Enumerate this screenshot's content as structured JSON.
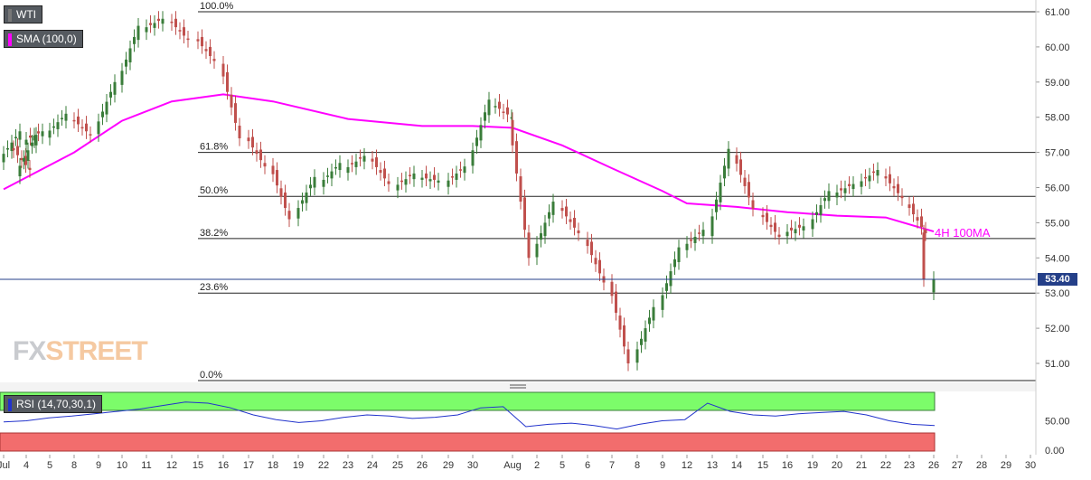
{
  "instrument_label": "WTI",
  "sma_label": "SMA (100,0)",
  "rsi_label": "RSI (14,70,30,1)",
  "ma_annotation": "4H 100MA",
  "current_price": "53.40",
  "logo": {
    "part1": "FX",
    "part2": "STREET"
  },
  "colors": {
    "bull": "#3a7d3a",
    "bear": "#c0504d",
    "sma": "#ff00ff",
    "rsi_line": "#2233cc",
    "overbought_zone": "#7cfc6a",
    "oversold_zone": "#f26d6d",
    "price_line": "#243f88"
  },
  "chart_data": {
    "type": "candlestick",
    "ylim": [
      50.5,
      61.1
    ],
    "price_ticks": [
      "61.00",
      "60.00",
      "59.00",
      "58.00",
      "57.00",
      "56.00",
      "55.00",
      "54.00",
      "53.00",
      "52.00",
      "51.00"
    ],
    "x_ticks": [
      "Jul",
      "4",
      "5",
      "8",
      "9",
      "10",
      "11",
      "12",
      "15",
      "16",
      "17",
      "18",
      "19",
      "22",
      "23",
      "24",
      "25",
      "26",
      "29",
      "30",
      "Aug",
      "2",
      "5",
      "6",
      "7",
      "8",
      "9",
      "12",
      "13",
      "14",
      "15",
      "16",
      "19",
      "20",
      "21",
      "22",
      "23",
      "26",
      "27",
      "28",
      "29",
      "30"
    ],
    "fibonacci": [
      {
        "label": "100.0%",
        "level": 61.0
      },
      {
        "label": "61.8%",
        "level": 57.0
      },
      {
        "label": "50.0%",
        "level": 55.75
      },
      {
        "label": "38.2%",
        "level": 54.55
      },
      {
        "label": "23.6%",
        "level": 53.0
      },
      {
        "label": "0.0%",
        "level": 50.5
      }
    ],
    "sma_100": [
      {
        "date": "Jul 1",
        "value": 55.95
      },
      {
        "date": "Jul 8",
        "value": 57.0
      },
      {
        "date": "Jul 10",
        "value": 57.9
      },
      {
        "date": "Jul 12",
        "value": 58.45
      },
      {
        "date": "Jul 16",
        "value": 58.65
      },
      {
        "date": "Jul 18",
        "value": 58.45
      },
      {
        "date": "Jul 23",
        "value": 57.95
      },
      {
        "date": "Jul 26",
        "value": 57.75
      },
      {
        "date": "Jul 30",
        "value": 57.75
      },
      {
        "date": "Aug 1",
        "value": 57.7
      },
      {
        "date": "Aug 5",
        "value": 57.2
      },
      {
        "date": "Aug 7",
        "value": 56.55
      },
      {
        "date": "Aug 9",
        "value": 55.9
      },
      {
        "date": "Aug 12",
        "value": 55.55
      },
      {
        "date": "Aug 14",
        "value": 55.45
      },
      {
        "date": "Aug 16",
        "value": 55.3
      },
      {
        "date": "Aug 20",
        "value": 55.2
      },
      {
        "date": "Aug 22",
        "value": 55.15
      },
      {
        "date": "Aug 26",
        "value": 54.75
      }
    ],
    "candles": [
      {
        "date": "Jul 1",
        "open": 56.8,
        "close": 57.6
      },
      {
        "date": "Jul 2",
        "open": 57.2,
        "close": 56.5
      },
      {
        "date": "Jul 3",
        "open": 56.4,
        "close": 57.5
      },
      {
        "date": "Jul 4",
        "open": 57.3,
        "close": 57.6
      },
      {
        "date": "Jul 5",
        "open": 57.5,
        "close": 58.1
      },
      {
        "date": "Jul 8",
        "open": 58.0,
        "close": 57.5
      },
      {
        "date": "Jul 9",
        "open": 57.6,
        "close": 59.0
      },
      {
        "date": "Jul 10",
        "open": 59.0,
        "close": 60.6
      },
      {
        "date": "Jul 11",
        "open": 60.5,
        "close": 60.8
      },
      {
        "date": "Jul 12",
        "open": 60.8,
        "close": 60.2
      },
      {
        "date": "Jul 15",
        "open": 60.3,
        "close": 59.6
      },
      {
        "date": "Jul 16",
        "open": 59.6,
        "close": 57.4
      },
      {
        "date": "Jul 17",
        "open": 57.5,
        "close": 56.6
      },
      {
        "date": "Jul 18",
        "open": 56.7,
        "close": 55.1
      },
      {
        "date": "Jul 19",
        "open": 55.2,
        "close": 56.3
      },
      {
        "date": "Jul 22",
        "open": 56.1,
        "close": 56.7
      },
      {
        "date": "Jul 23",
        "open": 56.5,
        "close": 56.9
      },
      {
        "date": "Jul 24",
        "open": 56.9,
        "close": 56.1
      },
      {
        "date": "Jul 25",
        "open": 56.0,
        "close": 56.4
      },
      {
        "date": "Jul 26",
        "open": 56.3,
        "close": 56.2
      },
      {
        "date": "Jul 29",
        "open": 56.1,
        "close": 56.6
      },
      {
        "date": "Jul 30",
        "open": 56.7,
        "close": 58.5
      },
      {
        "date": "Jul 31",
        "open": 58.4,
        "close": 58.0
      },
      {
        "date": "Aug 1",
        "open": 58.0,
        "close": 54.0
      },
      {
        "date": "Aug 2",
        "open": 54.1,
        "close": 55.6
      },
      {
        "date": "Aug 5",
        "open": 55.5,
        "close": 54.7
      },
      {
        "date": "Aug 6",
        "open": 54.6,
        "close": 53.3
      },
      {
        "date": "Aug 7",
        "open": 53.4,
        "close": 51.0
      },
      {
        "date": "Aug 8",
        "open": 51.1,
        "close": 52.6
      },
      {
        "date": "Aug 9",
        "open": 52.6,
        "close": 54.3
      },
      {
        "date": "Aug 12",
        "open": 54.3,
        "close": 54.8
      },
      {
        "date": "Aug 13",
        "open": 54.7,
        "close": 57.1
      },
      {
        "date": "Aug 14",
        "open": 57.0,
        "close": 55.4
      },
      {
        "date": "Aug 15",
        "open": 55.3,
        "close": 54.6
      },
      {
        "date": "Aug 16",
        "open": 54.7,
        "close": 54.9
      },
      {
        "date": "Aug 19",
        "open": 54.9,
        "close": 55.9
      },
      {
        "date": "Aug 20",
        "open": 55.8,
        "close": 56.1
      },
      {
        "date": "Aug 21",
        "open": 56.1,
        "close": 56.5
      },
      {
        "date": "Aug 22",
        "open": 56.4,
        "close": 55.7
      },
      {
        "date": "Aug 23",
        "open": 55.6,
        "close": 54.7
      },
      {
        "date": "Aug 23",
        "open": 54.8,
        "close": 53.4
      },
      {
        "date": "Aug 26",
        "open": 53.1,
        "close": 53.4
      }
    ],
    "rsi": {
      "ticks": [
        "50.00",
        "0.00"
      ],
      "overbought": 70,
      "oversold": 30,
      "ylim": [
        0,
        100
      ],
      "values": [
        48,
        50,
        55,
        58,
        62,
        66,
        70,
        76,
        82,
        80,
        72,
        60,
        52,
        47,
        50,
        56,
        60,
        58,
        54,
        56,
        60,
        72,
        74,
        40,
        44,
        46,
        42,
        36,
        44,
        50,
        52,
        80,
        66,
        60,
        58,
        62,
        64,
        66,
        60,
        50,
        44,
        42
      ]
    }
  }
}
